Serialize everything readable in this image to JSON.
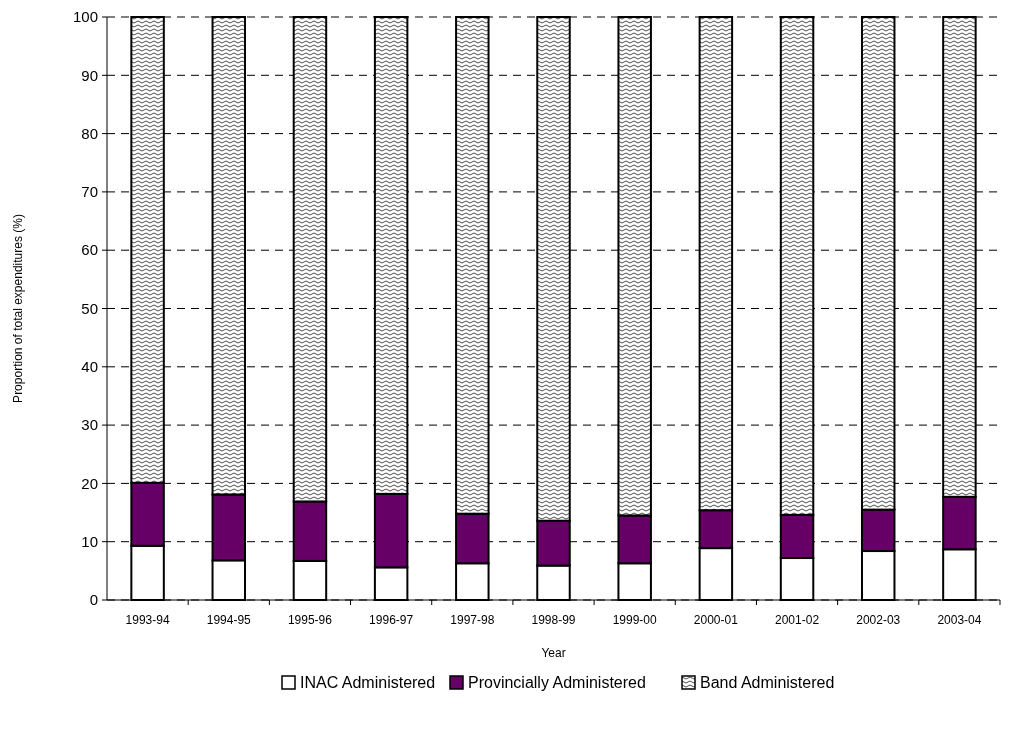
{
  "chart_data": {
    "type": "bar",
    "stacked": true,
    "xlabel": "Year",
    "ylabel": "Proportion of total expenditures (%)",
    "categories": [
      "1993-94",
      "1994-95",
      "1995-96",
      "1996-97",
      "1997-98",
      "1998-99",
      "1999-00",
      "2000-01",
      "2001-02",
      "2002-03",
      "2003-04"
    ],
    "series": [
      {
        "name": "INAC Administered",
        "color": "#ffffff",
        "values": [
          9.3,
          6.8,
          6.7,
          5.6,
          6.3,
          5.9,
          6.3,
          8.9,
          7.2,
          8.4,
          8.7
        ]
      },
      {
        "name": "Provincially Administered",
        "color": "#660066",
        "values": [
          10.8,
          11.3,
          10.2,
          12.6,
          8.5,
          7.7,
          8.2,
          6.5,
          7.4,
          7.1,
          9.0
        ]
      },
      {
        "name": "Band Administered",
        "color": "#000000",
        "values": [
          79.9,
          81.9,
          83.1,
          81.8,
          85.2,
          86.4,
          85.5,
          84.6,
          85.4,
          84.5,
          82.3
        ]
      }
    ],
    "ylim": [
      0,
      100
    ],
    "yticks": [
      0,
      10,
      20,
      30,
      40,
      50,
      60,
      70,
      80,
      90,
      100
    ],
    "grid": "y",
    "legend": "bottom"
  }
}
